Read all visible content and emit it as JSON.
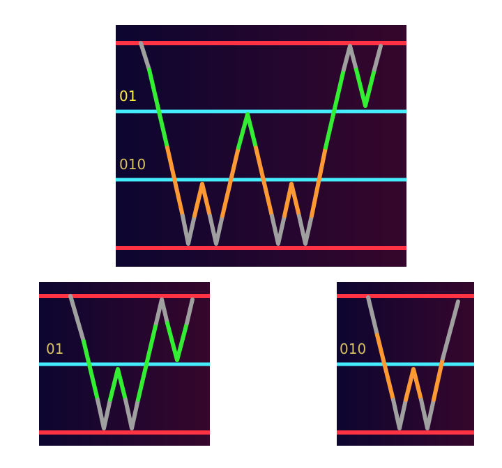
{
  "colors": {
    "boundary_line": "#ff3344",
    "threshold_line": "#44eeff",
    "segment_neutral": "#a0a0a0",
    "segment_green": "#33ee33",
    "segment_orange": "#ff9933",
    "bg_left": "#0c0630",
    "bg_right": "#36062c",
    "label_bright": "#ffee44",
    "label_dim": "#d9c060",
    "page_bg": "#ffffff"
  },
  "panels": [
    {
      "name": "main-panel",
      "labels": [
        {
          "text": "01",
          "color": "label_bright"
        },
        {
          "text": "010",
          "color": "label_dim"
        }
      ]
    },
    {
      "name": "left-panel",
      "labels": [
        {
          "text": "01",
          "color": "label_dim"
        }
      ]
    },
    {
      "name": "right-panel",
      "labels": [
        {
          "text": "010",
          "color": "label_dim"
        }
      ]
    }
  ]
}
